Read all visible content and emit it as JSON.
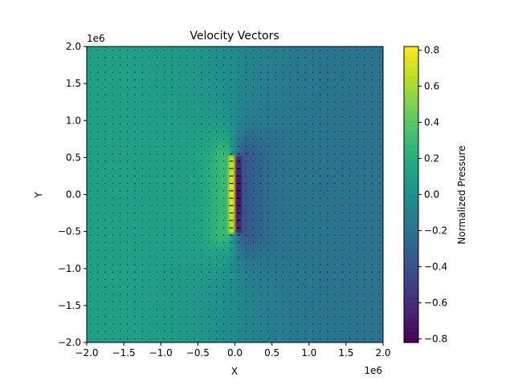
{
  "chart_data": {
    "type": "heatmap",
    "title": "Velocity Vectors",
    "xlabel": "X",
    "ylabel": "Y",
    "x_offset_label": "1e6",
    "y_offset_label": "1e6",
    "xlim": [
      -2.0,
      2.0
    ],
    "ylim": [
      -2.0,
      2.0
    ],
    "x_ticks": [
      -2.0,
      -1.5,
      -1.0,
      -0.5,
      0.0,
      0.5,
      1.0,
      1.5,
      2.0
    ],
    "x_tick_labels": [
      "−2.0",
      "−1.5",
      "−1.0",
      "−0.5",
      "0.0",
      "0.5",
      "1.0",
      "1.5",
      "2.0"
    ],
    "y_ticks": [
      -2.0,
      -1.5,
      -1.0,
      -0.5,
      0.0,
      0.5,
      1.0,
      1.5,
      2.0
    ],
    "y_tick_labels": [
      "−2.0",
      "−1.5",
      "−1.0",
      "−0.5",
      "0.0",
      "0.5",
      "1.0",
      "1.5",
      "2.0"
    ],
    "colorbar": {
      "label": "Normalized Pressure",
      "range": [
        -0.82,
        0.82
      ],
      "ticks": [
        -0.8,
        -0.6,
        -0.4,
        -0.2,
        0.0,
        0.2,
        0.4,
        0.6,
        0.8
      ],
      "tick_labels": [
        "−0.8",
        "−0.6",
        "−0.4",
        "−0.2",
        "0.0",
        "0.2",
        "0.4",
        "0.6",
        "0.8"
      ],
      "colormap": "viridis"
    },
    "field": {
      "description_units": "x, y in units of 1e6",
      "dipole_source_x": -0.1,
      "dipole_sink_x": 0.1,
      "dipole_half_length_y": 0.5,
      "left_background": 0.12,
      "right_background": -0.2
    },
    "quiver": {
      "grid_spacing": 0.1,
      "color": "#000000"
    }
  }
}
